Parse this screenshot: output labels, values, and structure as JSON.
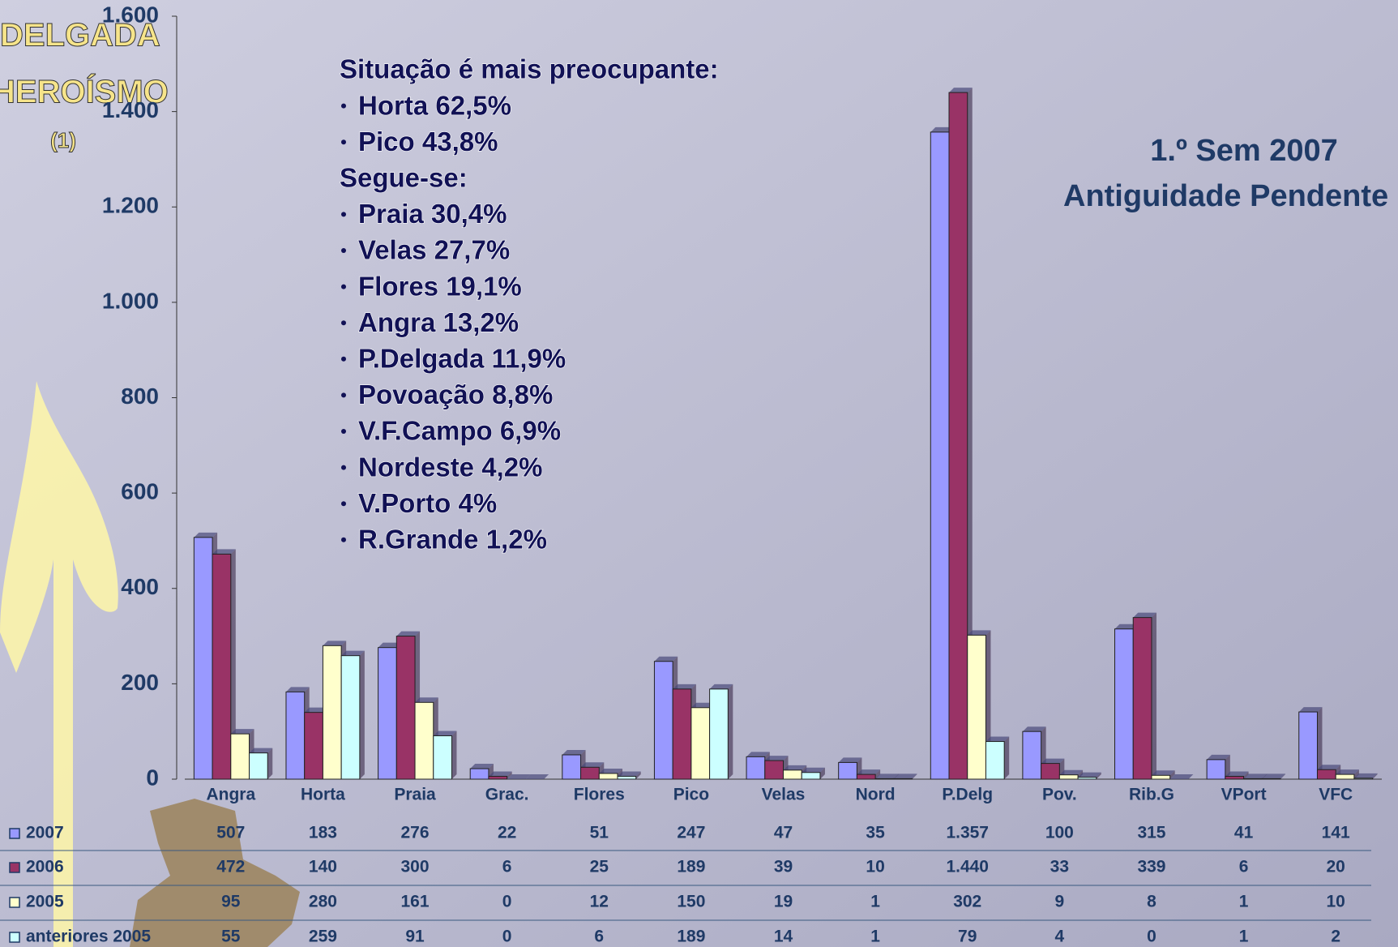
{
  "chart_data": {
    "type": "bar",
    "side_labels": [
      "DELGADA",
      "HEROÍSMO",
      "(1)"
    ],
    "period_title": [
      "1.º Sem 2007",
      "Antiguidade Pendente"
    ],
    "notes": {
      "heading1": "Situação é mais preocupante:",
      "list1": [
        "Horta 62,5%",
        "Pico 43,8%"
      ],
      "heading2": "Segue-se:",
      "list2": [
        "Praia 30,4%",
        "Velas 27,7%",
        "Flores 19,1%",
        "Angra 13,2%",
        "P.Delgada 11,9%",
        "Povoação 8,8%",
        "V.F.Campo 6,9%",
        "Nordeste 4,2%",
        "V.Porto 4%",
        "R.Grande 1,2%"
      ]
    },
    "categories": [
      "Angra",
      "Horta",
      "Praia",
      "Grac.",
      "Flores",
      "Pico",
      "Velas",
      "Nord",
      "P.Delg",
      "Pov.",
      "Rib.G",
      "VPort",
      "VFC"
    ],
    "series": [
      {
        "name": "2007",
        "color": "#9999ff",
        "values": [
          507,
          183,
          276,
          22,
          51,
          247,
          47,
          35,
          1357,
          100,
          315,
          41,
          141
        ],
        "value_labels": [
          "507",
          "183",
          "276",
          "22",
          "51",
          "247",
          "47",
          "35",
          "1.357",
          "100",
          "315",
          "41",
          "141"
        ]
      },
      {
        "name": "2006",
        "color": "#993366",
        "values": [
          472,
          140,
          300,
          6,
          25,
          189,
          39,
          10,
          1440,
          33,
          339,
          6,
          20
        ],
        "value_labels": [
          "472",
          "140",
          "300",
          "6",
          "25",
          "189",
          "39",
          "10",
          "1.440",
          "33",
          "339",
          "6",
          "20"
        ]
      },
      {
        "name": "2005",
        "color": "#ffffcc",
        "values": [
          95,
          280,
          161,
          0,
          12,
          150,
          19,
          1,
          302,
          9,
          8,
          1,
          10
        ]
      },
      {
        "name": "anteriores 2005",
        "color": "#ccffff",
        "values": [
          55,
          259,
          91,
          0,
          6,
          189,
          14,
          1,
          79,
          4,
          0,
          1,
          2
        ]
      }
    ],
    "ylim": [
      0,
      1600
    ],
    "yticks": [
      0,
      200,
      400,
      600,
      800,
      {
        "value": 1000,
        "label": "1.000"
      },
      {
        "value": 1200,
        "label": "1.200"
      },
      {
        "value": 1400,
        "label": "1.400"
      },
      {
        "value": 1600,
        "label": "1.600"
      }
    ]
  }
}
